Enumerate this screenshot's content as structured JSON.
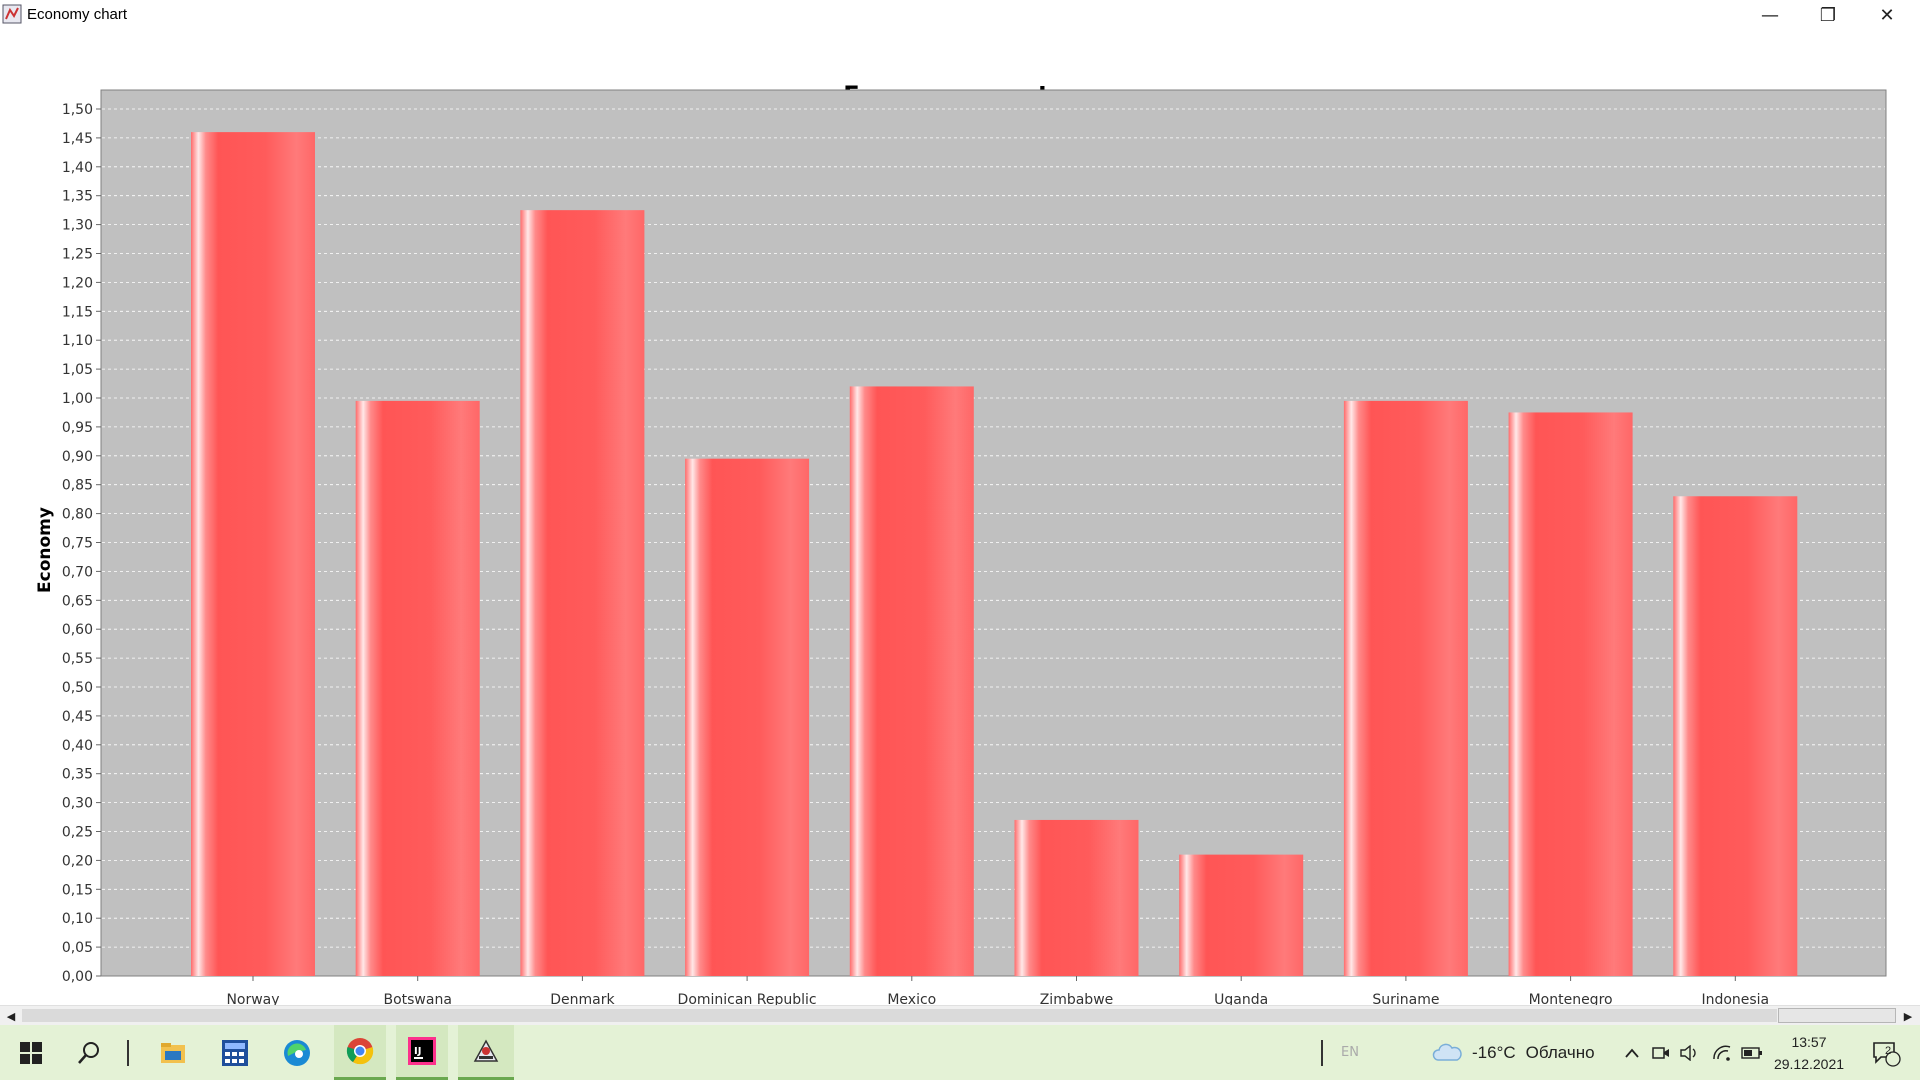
{
  "window": {
    "title": "Economy chart",
    "minimize": "—",
    "maximize": "❐",
    "close": "✕"
  },
  "chart_data": {
    "type": "bar",
    "title": "Economy country",
    "xlabel": "",
    "ylabel": "Economy",
    "ylim": [
      0,
      1.5
    ],
    "ytick_step": 0.05,
    "decimal_separator": ",",
    "grid": true,
    "bar_color": "#ff5a5a",
    "plot_background": "#c0c0c0",
    "categories": [
      "Norway",
      "Botswana",
      "Denmark",
      "Dominican Republic",
      "Mexico",
      "Zimbabwe",
      "Uganda",
      "Suriname",
      "Montenegro",
      "Indonesia"
    ],
    "values": [
      1.46,
      0.995,
      1.325,
      0.895,
      1.02,
      0.27,
      0.21,
      0.995,
      0.975,
      0.83
    ]
  },
  "taskbar": {
    "apps": [
      {
        "name": "start-icon",
        "glyph": "⊞"
      },
      {
        "name": "search-icon",
        "glyph": "⚲"
      },
      {
        "name": "file-explorer-icon",
        "glyph": "▇"
      },
      {
        "name": "store-icon",
        "glyph": "▦"
      },
      {
        "name": "edge-icon",
        "glyph": "◐"
      },
      {
        "name": "chrome-icon",
        "glyph": "◉"
      },
      {
        "name": "intellij-icon",
        "glyph": "IJ"
      },
      {
        "name": "java-app-icon",
        "glyph": "☕"
      }
    ],
    "language": "EN",
    "weather_temp": "-16°C",
    "weather_text": "Облачно",
    "time": "13:57",
    "date": "29.12.2021",
    "notifications": "2"
  }
}
